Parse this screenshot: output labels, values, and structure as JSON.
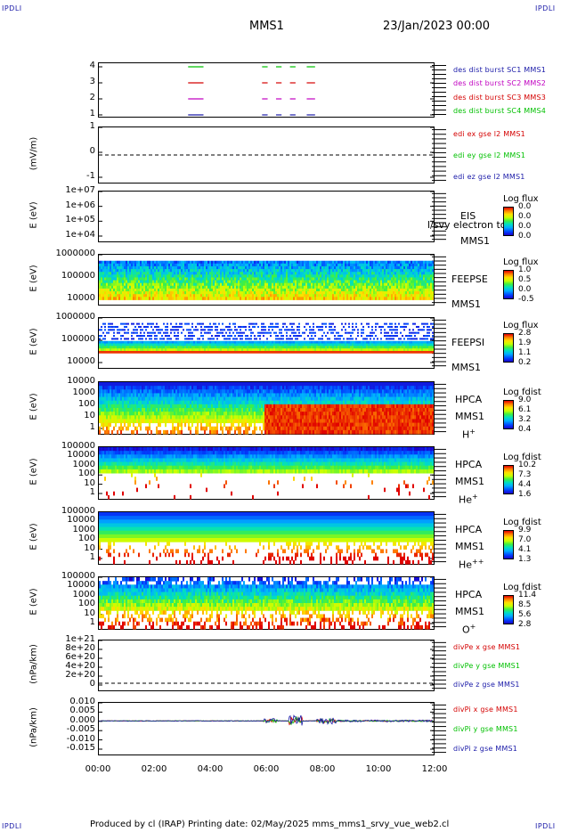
{
  "header": {
    "corner_tl": "IPDLI",
    "corner_tr": "IPDLI",
    "corner_bl": "IPDLI",
    "corner_br": "IPDLI",
    "spacecraft": "MMS1",
    "date": "23/Jan/2023 00:00"
  },
  "footer": {
    "text": "Produced by cl (IRAP)   Printing date: 02/May/2025   mms_mms1_srvy_vue_web2.cl"
  },
  "colors": {
    "black": "#000000",
    "blue": "#1a1aa8",
    "red": "#d40000",
    "magenta": "#c000c0",
    "green": "#00c000",
    "darkred": "#d40000"
  },
  "chart_data": [
    {
      "type": "timeline",
      "name": "burst",
      "yticks": [
        "4",
        "3",
        "2",
        "1"
      ],
      "legend": [
        {
          "text": "des dist burst SC1 MMS1",
          "color": "#1a1aa8"
        },
        {
          "text": "des dist burst SC2 MMS2",
          "color": "#c000c0"
        },
        {
          "text": "des dist burst SC3 MMS3",
          "color": "#d40000"
        },
        {
          "text": "des dist burst SC4 MMS4",
          "color": "#00c000"
        }
      ],
      "segments_hours": [
        [
          3.2,
          3.75
        ],
        [
          5.85,
          6.05
        ],
        [
          6.35,
          6.55
        ],
        [
          6.85,
          7.05
        ],
        [
          7.45,
          7.75
        ]
      ]
    },
    {
      "type": "line",
      "name": "edi",
      "ylabel": "(mV/m)",
      "yticks": [
        "1",
        "0",
        "-1"
      ],
      "legend": [
        {
          "text": "edi ex gse l2 MMS1",
          "color": "#d40000"
        },
        {
          "text": "edi ey gse l2 MMS1",
          "color": "#00c000"
        },
        {
          "text": "edi ez gse l2 MMS1",
          "color": "#1a1aa8"
        }
      ]
    },
    {
      "type": "heatmap",
      "name": "eis",
      "ylabel": "E (eV)",
      "yticks": [
        "1e+07",
        "1e+06",
        "1e+05",
        "1e+04"
      ],
      "right": [
        "EIS",
        "MMS1"
      ],
      "overlay": "l/svy electron to",
      "cb_title": "Log flux",
      "cb_ticks": [
        "0.0",
        "0.0",
        "0.0",
        "0.0"
      ]
    },
    {
      "type": "heatmap",
      "name": "feepse",
      "ylabel": "E (eV)",
      "yticks": [
        "1000000",
        "100000",
        "10000"
      ],
      "right": [
        "FEEPSE",
        "MMS1"
      ],
      "cb_title": "Log flux",
      "cb_ticks": [
        "1.0",
        "0.5",
        "0.0",
        "-0.5"
      ]
    },
    {
      "type": "heatmap",
      "name": "feepsi",
      "ylabel": "E (eV)",
      "yticks": [
        "1000000",
        "100000",
        "10000"
      ],
      "right": [
        "FEEPSI",
        "MMS1"
      ],
      "cb_title": "Log flux",
      "cb_ticks": [
        "2.8",
        "1.9",
        "1.1",
        "0.2"
      ]
    },
    {
      "type": "heatmap",
      "name": "hpca-h",
      "ylabel": "E (eV)",
      "yticks": [
        "10000",
        "1000",
        "100",
        "10",
        "1"
      ],
      "right": [
        "HPCA",
        "MMS1"
      ],
      "species": "H",
      "species_sup": "+",
      "cb_title": "Log fdist",
      "cb_ticks": [
        "9.0",
        "6.1",
        "3.2",
        "0.4"
      ]
    },
    {
      "type": "heatmap",
      "name": "hpca-he",
      "ylabel": "E (eV)",
      "yticks": [
        "100000",
        "10000",
        "1000",
        "100",
        "10",
        "1"
      ],
      "right": [
        "HPCA",
        "MMS1"
      ],
      "species": "He",
      "species_sup": "+",
      "cb_title": "Log fdist",
      "cb_ticks": [
        "10.2",
        "7.3",
        "4.4",
        "1.6"
      ]
    },
    {
      "type": "heatmap",
      "name": "hpca-hepp",
      "ylabel": "E (eV)",
      "yticks": [
        "100000",
        "10000",
        "1000",
        "100",
        "10",
        "1"
      ],
      "right": [
        "HPCA",
        "MMS1"
      ],
      "species": "He",
      "species_sup": "++",
      "cb_title": "Log fdist",
      "cb_ticks": [
        "9.9",
        "7.0",
        "4.1",
        "1.3"
      ]
    },
    {
      "type": "heatmap",
      "name": "hpca-o",
      "ylabel": "E (eV)",
      "yticks": [
        "100000",
        "10000",
        "1000",
        "100",
        "10",
        "1"
      ],
      "right": [
        "HPCA",
        "MMS1"
      ],
      "species": "O",
      "species_sup": "+",
      "cb_title": "Log fdist",
      "cb_ticks": [
        "11.4",
        "8.5",
        "5.6",
        "2.8"
      ]
    },
    {
      "type": "line",
      "name": "divpe",
      "ylabel": "(nPa/km)",
      "yticks": [
        "1e+21",
        "8e+20",
        "6e+20",
        "4e+20",
        "2e+20",
        "0"
      ],
      "legend": [
        {
          "text": "divPe x gse MMS1",
          "color": "#d40000"
        },
        {
          "text": "divPe y gse MMS1",
          "color": "#00c000"
        },
        {
          "text": "divPe z gse MMS1",
          "color": "#1a1aa8"
        }
      ]
    },
    {
      "type": "line",
      "name": "divpi",
      "ylabel": "(nPa/km)",
      "yticks": [
        "0.010",
        "0.005",
        "0.000",
        "-0.005",
        "-0.010",
        "-0.015"
      ],
      "legend": [
        {
          "text": "divPi x gse MMS1",
          "color": "#d40000"
        },
        {
          "text": "divPi y gse MMS1",
          "color": "#00c000"
        },
        {
          "text": "divPi z gse MMS1",
          "color": "#1a1aa8"
        }
      ]
    }
  ],
  "xaxis": {
    "ticks": [
      "00:00",
      "02:00",
      "04:00",
      "06:00",
      "08:00",
      "10:00",
      "12:00"
    ],
    "range_hours": [
      0,
      12
    ]
  }
}
